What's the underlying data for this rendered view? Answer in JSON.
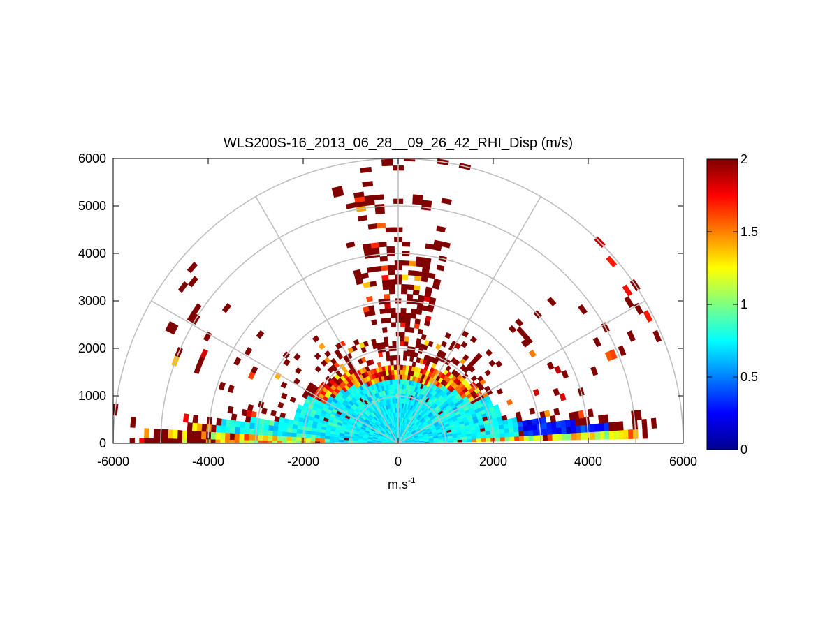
{
  "chart_data": {
    "type": "heatmap",
    "subtype": "polar-rhi-scan",
    "title": "WLS200S-16_2013_06_28__09_26_42_RHI_Disp (m/s)",
    "xlabel": "m.s",
    "xlabel_superscript": "-1",
    "ylabel": "",
    "xlim": [
      -6000,
      6000
    ],
    "ylim": [
      0,
      6000
    ],
    "x_ticks": [
      "-6000",
      "-4000",
      "-2000",
      "0",
      "2000",
      "4000",
      "6000"
    ],
    "y_ticks": [
      "0",
      "1000",
      "2000",
      "3000",
      "4000",
      "5000",
      "6000"
    ],
    "polar_grid": {
      "range_rings": [
        1000,
        2000,
        3000,
        4000,
        5000,
        6000
      ],
      "azimuth_spokes_deg": [
        0,
        30,
        60,
        90,
        120,
        150,
        180
      ]
    },
    "colorbar": {
      "colormap": "jet",
      "range": [
        0,
        2
      ],
      "ticks": [
        "0",
        "0.5",
        "1",
        "1.5",
        "2"
      ]
    },
    "data_summary": {
      "near_range_values": "0.5-0.9 (cyan) within ~2000 m of the lidar at elevations below ~30 deg",
      "outer_values": "saturated at 2 (dark red) scattered beyond ~1800 m",
      "low_values": "0.2-0.5 (blue) along low-elevation rays between x = 2500 and 5000"
    }
  }
}
